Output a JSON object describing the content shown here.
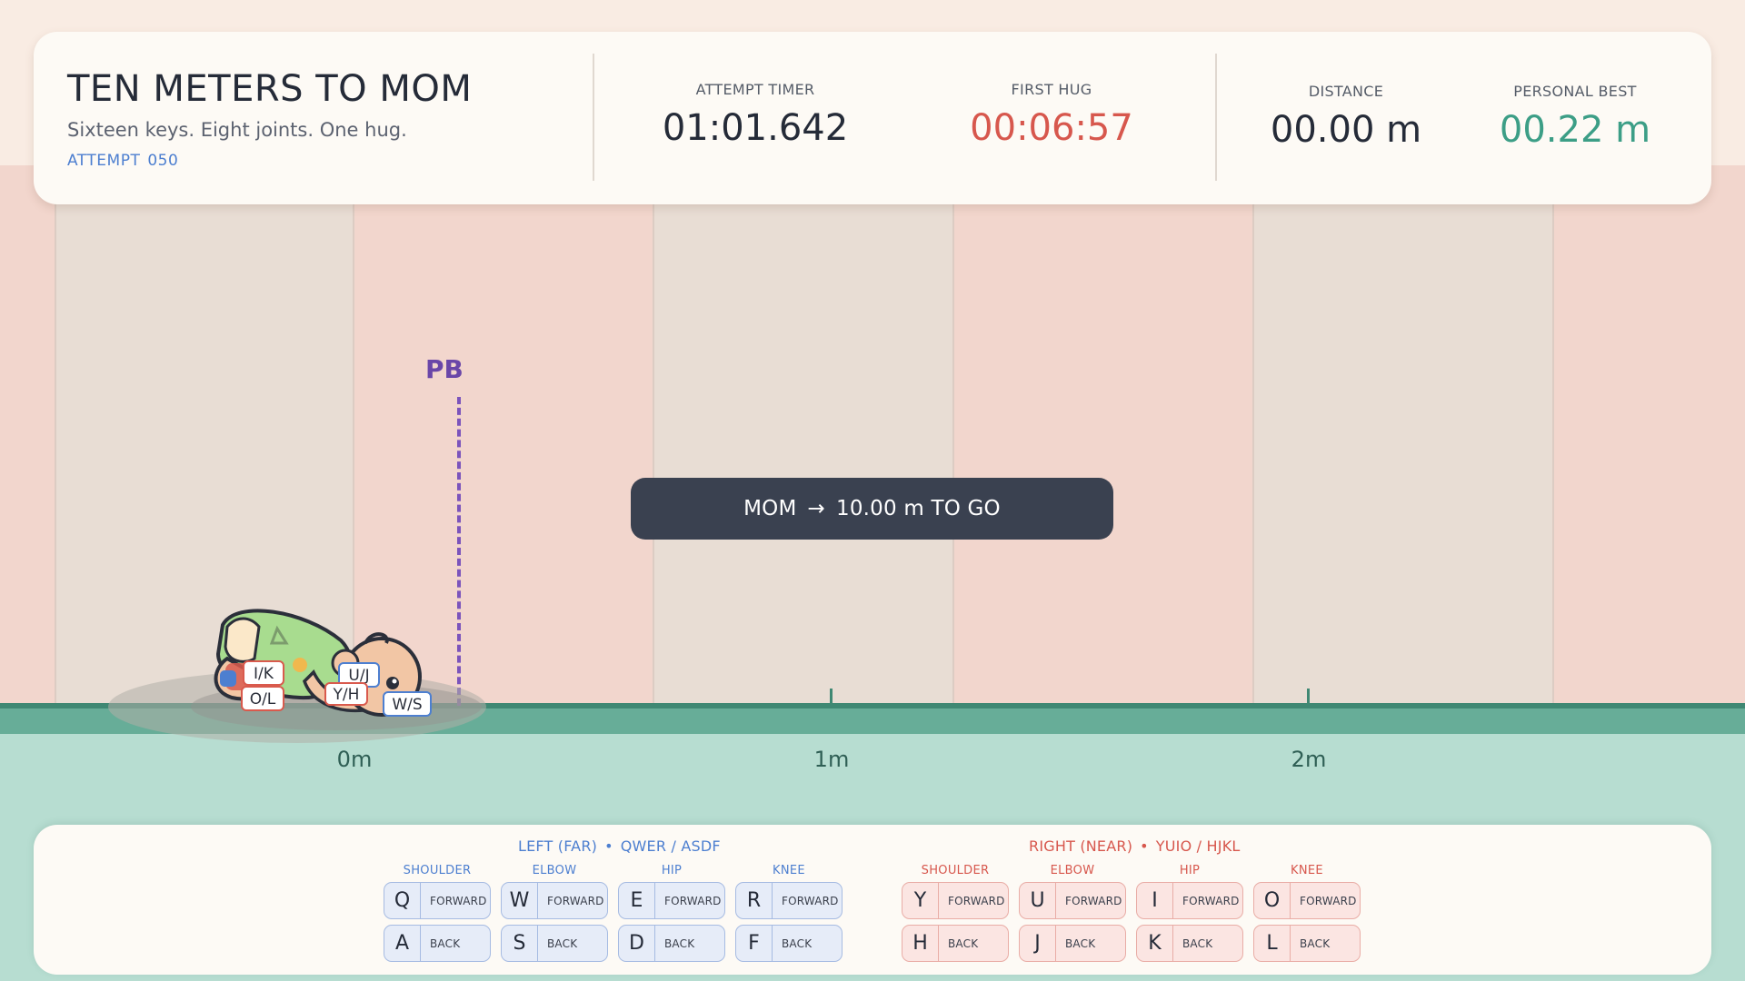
{
  "header": {
    "title": "TEN METERS TO MOM",
    "tagline": "Sixteen keys. Eight joints. One hug.",
    "attempt_label": "ATTEMPT",
    "attempt_number": "050"
  },
  "stats": {
    "attempt_timer": {
      "label": "ATTEMPT TIMER",
      "value": "01:01.642"
    },
    "first_hug": {
      "label": "FIRST HUG",
      "value": "00:06:57"
    },
    "distance": {
      "label": "DISTANCE",
      "value": "00.00 m"
    },
    "personal_best": {
      "label": "PERSONAL BEST",
      "value": "00.22 m"
    }
  },
  "track": {
    "pb_label": "PB",
    "markers": [
      "0m",
      "1m",
      "2m"
    ],
    "mom_banner": {
      "target": "MOM",
      "arrow": "→",
      "remaining": "10.00 m TO GO"
    }
  },
  "baby_key_tags": [
    "I/K",
    "O/L",
    "U/J",
    "Y/H",
    "W/S"
  ],
  "controls": {
    "left": {
      "title": "LEFT (FAR)",
      "keys_hint": "QWER / ASDF",
      "joints": [
        {
          "name": "SHOULDER",
          "forward_key": "Q",
          "back_key": "A"
        },
        {
          "name": "ELBOW",
          "forward_key": "W",
          "back_key": "S"
        },
        {
          "name": "HIP",
          "forward_key": "E",
          "back_key": "D"
        },
        {
          "name": "KNEE",
          "forward_key": "R",
          "back_key": "F"
        }
      ]
    },
    "right": {
      "title": "RIGHT (NEAR)",
      "keys_hint": "YUIO / HJKL",
      "joints": [
        {
          "name": "SHOULDER",
          "forward_key": "Y",
          "back_key": "H"
        },
        {
          "name": "ELBOW",
          "forward_key": "U",
          "back_key": "J"
        },
        {
          "name": "HIP",
          "forward_key": "I",
          "back_key": "K"
        },
        {
          "name": "KNEE",
          "forward_key": "O",
          "back_key": "L"
        }
      ]
    },
    "forward_label": "FORWARD",
    "back_label": "BACK",
    "separator": "•"
  },
  "colors": {
    "left_accent": "#4d7fd0",
    "right_accent": "#d7574d",
    "best": "#3c9e86",
    "pb_marker": "#6a46a8",
    "ground": "#3f8873"
  }
}
